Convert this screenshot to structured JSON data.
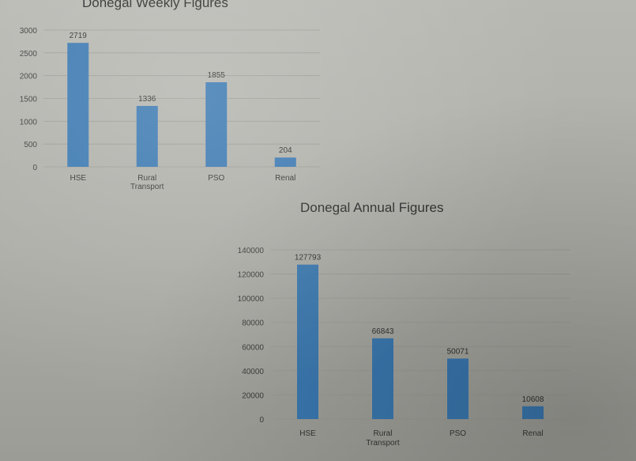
{
  "chart_data": [
    {
      "type": "bar",
      "title": "Donegal Weekly Figures",
      "categories": [
        "HSE",
        "Rural Transport",
        "PSO",
        "Renal"
      ],
      "category_lines": [
        [
          "HSE"
        ],
        [
          "Rural",
          "Transport"
        ],
        [
          "PSO"
        ],
        [
          "Renal"
        ]
      ],
      "values": [
        2719,
        1336,
        1855,
        204
      ],
      "ylim": [
        0,
        3000
      ],
      "yticks": [
        0,
        500,
        1000,
        1500,
        2000,
        2500,
        3000
      ],
      "grid": true,
      "bar_color": "#3a78b0"
    },
    {
      "type": "bar",
      "title": "Donegal Annual Figures",
      "categories": [
        "HSE",
        "Rural Transport",
        "PSO",
        "Renal"
      ],
      "category_lines": [
        [
          "HSE"
        ],
        [
          "Rural",
          "Transport"
        ],
        [
          "PSO"
        ],
        [
          "Renal"
        ]
      ],
      "values": [
        127793,
        66843,
        50071,
        10608
      ],
      "ylim": [
        0,
        140000
      ],
      "yticks": [
        0,
        20000,
        40000,
        60000,
        80000,
        100000,
        120000,
        140000
      ],
      "grid": true,
      "bar_color": "#3a78b0"
    }
  ]
}
